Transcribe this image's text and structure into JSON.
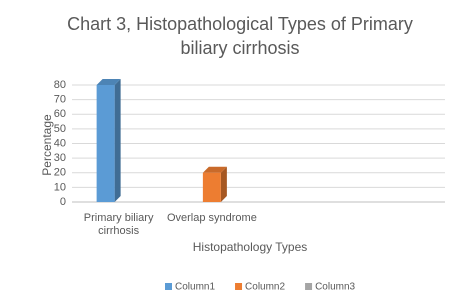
{
  "chart_data": {
    "type": "bar",
    "title": "Chart 3,  Histopathological Types of Primary biliary cirrhosis",
    "x_label": "Histopathology Types",
    "y_label": "Percentage",
    "categories": [
      "Primary biliary cirrhosis",
      "Overlap syndrome",
      null,
      null
    ],
    "series": [
      {
        "name": "Column1",
        "color": "#5b9bd5",
        "values": [
          80,
          null,
          null,
          null
        ]
      },
      {
        "name": "Column2",
        "color": "#ed7d31",
        "values": [
          null,
          20,
          null,
          null
        ]
      },
      {
        "name": "Column3",
        "color": "#a5a5a5",
        "values": [
          null,
          null,
          null,
          null
        ]
      }
    ],
    "ylim": [
      0,
      80
    ],
    "yticks": [
      0,
      10,
      20,
      30,
      40,
      50,
      60,
      70,
      80
    ],
    "grid": true,
    "legend": "bottom"
  }
}
